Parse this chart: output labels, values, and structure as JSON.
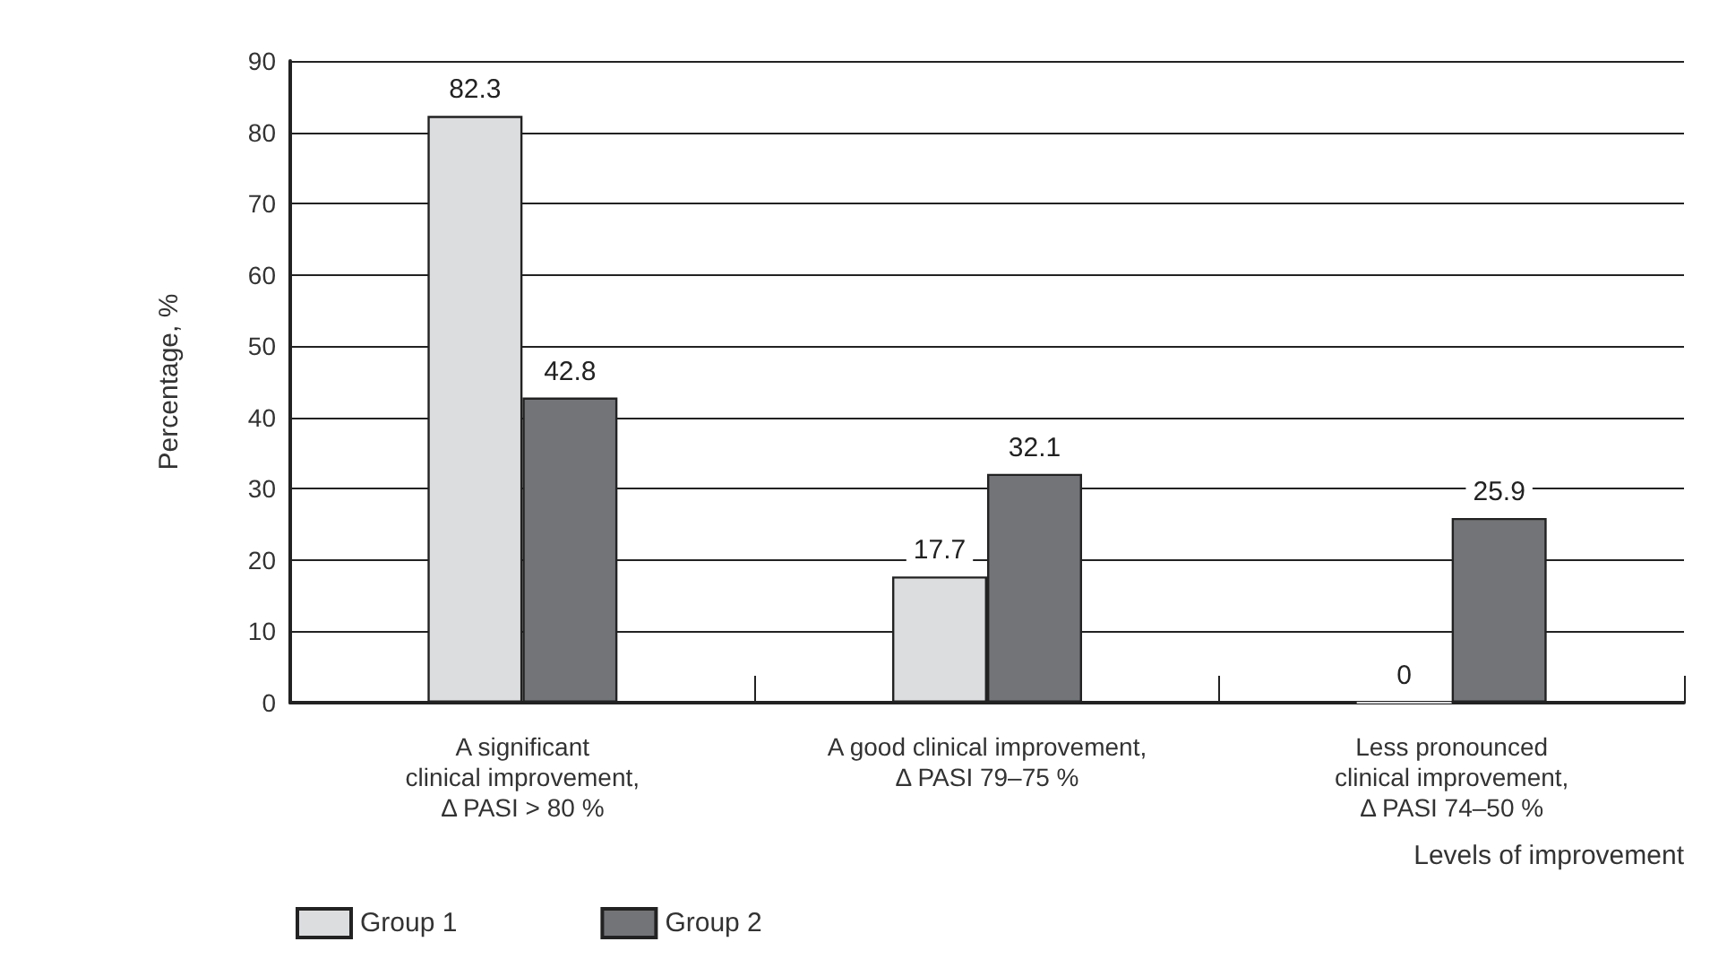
{
  "chart_data": {
    "type": "bar",
    "xlabel": "Levels of improvement",
    "ylabel": "Percentage, %",
    "categories": [
      "A significant\nclinical improvement,\nΔ PASI > 80 %",
      "A good clinical improvement,\nΔ PASI 79–75 %",
      "Less pronounced\nclinical improvement,\nΔ PASI 74–50 %"
    ],
    "series": [
      {
        "name": "Group 1",
        "color": "#dcdddf",
        "values": [
          82.3,
          17.7,
          0
        ]
      },
      {
        "name": "Group 2",
        "color": "#737477",
        "values": [
          42.8,
          32.1,
          25.9
        ]
      }
    ],
    "ylim": [
      0,
      90
    ],
    "yticks": [
      0,
      10,
      20,
      30,
      40,
      50,
      60,
      70,
      80,
      90
    ],
    "grid": "y",
    "legend": "bottom left",
    "data_labels": true
  }
}
